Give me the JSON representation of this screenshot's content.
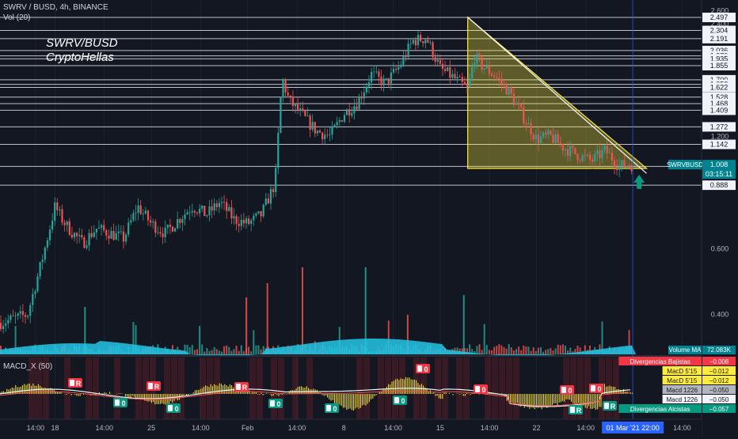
{
  "header": {
    "symbol_line": "SWRV / BUSD, 4h, BINANCE",
    "vol_line": "Vol (20)",
    "watermark_line1": "SWRV/BUSD",
    "watermark_line2": "CryptoHellas"
  },
  "macd_pane": {
    "title": "MACD_X (50)",
    "tags": [
      {
        "text": "R",
        "kind": "bear"
      },
      {
        "text": "R",
        "kind": "bear"
      },
      {
        "text": "R",
        "kind": "bear"
      },
      {
        "text": "0",
        "kind": "bear"
      },
      {
        "text": "0",
        "kind": "bear"
      },
      {
        "text": "0",
        "kind": "bear"
      },
      {
        "text": "0",
        "kind": "bear"
      },
      {
        "text": "0",
        "kind": "bull"
      },
      {
        "text": "0",
        "kind": "bull"
      },
      {
        "text": "0",
        "kind": "bull"
      },
      {
        "text": "0",
        "kind": "bull"
      },
      {
        "text": "0",
        "kind": "bull"
      },
      {
        "text": "R",
        "kind": "bull"
      },
      {
        "text": "R",
        "kind": "bull"
      }
    ],
    "labels": [
      {
        "text": "Divergencias Bajistas",
        "value": "−0.008",
        "color": "#f23645",
        "fg": "#ffffff"
      },
      {
        "text": "MacD 5'15",
        "value": "−0.012",
        "color": "#ffeb3b",
        "fg": "#131722"
      },
      {
        "text": "MacD 5'15",
        "value": "−0.012",
        "color": "#ffeb3b",
        "fg": "#131722"
      },
      {
        "text": "Macd 1226",
        "value": "−0.050",
        "color": "#b2b5be",
        "fg": "#131722"
      },
      {
        "text": "Macd 1226",
        "value": "−0.050",
        "color": "#f0f3fa",
        "fg": "#131722"
      },
      {
        "text": "Divergencias Alcistas",
        "value": "−0.057",
        "color": "#089981",
        "fg": "#ffffff"
      }
    ]
  },
  "price_labels": {
    "symbol_tag": "SWRVBUSD",
    "last_price": "1.008",
    "countdown": "03:15:11",
    "volume_ma_label": "Volume MA",
    "volume_ma_value": "72.083K",
    "hline_levels": [
      "2.497",
      "2.304",
      "2.191",
      "2.036",
      "1.970",
      "1.935",
      "1.855",
      "1.700",
      "1.653",
      "1.622",
      "1.528",
      "1.468",
      "1.409",
      "1.272",
      "1.142",
      "0.997",
      "0.888"
    ],
    "axis_plain": [
      "2.600",
      "2.400",
      "1.200",
      "0.600",
      "0.400"
    ]
  },
  "time_axis": {
    "ticks": [
      "14:00",
      "18",
      "14:00",
      "25",
      "14:00",
      "Feb",
      "14:00",
      "8",
      "14:00",
      "15",
      "14:00",
      "22",
      "14:00",
      "14:00",
      "8"
    ],
    "current": "01 Mar '21   22:00"
  },
  "chart_data": {
    "type": "candlestick",
    "title": "SWRV / BUSD, 4h, BINANCE",
    "scale": "log",
    "ylim": [
      0.31,
      2.78
    ],
    "last_price": 1.008,
    "x_range": [
      "2021-01-14",
      "2021-03-06"
    ],
    "series": [
      {
        "name": "SWRVBUSD",
        "points": [
          [
            "2021-01-14",
            0.38
          ],
          [
            "2021-01-15",
            0.39
          ],
          [
            "2021-01-16",
            0.4
          ],
          [
            "2021-01-16 12:00",
            0.47
          ],
          [
            "2021-01-17",
            0.55
          ],
          [
            "2021-01-18",
            0.78
          ],
          [
            "2021-01-18 12:00",
            0.72
          ],
          [
            "2021-01-19",
            0.68
          ],
          [
            "2021-01-20",
            0.62
          ],
          [
            "2021-01-21",
            0.68
          ],
          [
            "2021-01-22",
            0.66
          ],
          [
            "2021-01-23",
            0.64
          ],
          [
            "2021-01-24",
            0.78
          ],
          [
            "2021-01-25",
            0.7
          ],
          [
            "2021-01-26",
            0.66
          ],
          [
            "2021-01-27",
            0.72
          ],
          [
            "2021-01-28",
            0.78
          ],
          [
            "2021-01-29",
            0.74
          ],
          [
            "2021-01-30",
            0.8
          ],
          [
            "2021-01-31",
            0.72
          ],
          [
            "2021-02-01",
            0.7
          ],
          [
            "2021-02-02",
            0.74
          ],
          [
            "2021-02-03",
            0.9
          ],
          [
            "2021-02-03 12:00",
            1.72
          ],
          [
            "2021-02-04",
            1.5
          ],
          [
            "2021-02-05",
            1.36
          ],
          [
            "2021-02-06",
            1.24
          ],
          [
            "2021-02-07",
            1.2
          ],
          [
            "2021-02-08",
            1.38
          ],
          [
            "2021-02-09",
            1.48
          ],
          [
            "2021-02-10",
            1.76
          ],
          [
            "2021-02-11",
            1.66
          ],
          [
            "2021-02-12",
            1.84
          ],
          [
            "2021-02-13",
            2.16
          ],
          [
            "2021-02-14",
            2.2
          ],
          [
            "2021-02-15",
            1.82
          ],
          [
            "2021-02-16",
            1.72
          ],
          [
            "2021-02-17",
            1.6
          ],
          [
            "2021-02-17 12:00",
            1.96
          ],
          [
            "2021-02-18",
            1.86
          ],
          [
            "2021-02-19",
            1.74
          ],
          [
            "2021-02-20",
            1.58
          ],
          [
            "2021-02-21",
            1.36
          ],
          [
            "2021-02-22",
            1.18
          ],
          [
            "2021-02-23",
            1.2
          ],
          [
            "2021-02-24",
            1.12
          ],
          [
            "2021-02-25",
            1.07
          ],
          [
            "2021-02-26",
            1.03
          ],
          [
            "2021-02-27",
            1.1
          ],
          [
            "2021-02-28",
            1.0
          ],
          [
            "2021-03-01",
            1.008
          ]
        ]
      }
    ],
    "annotations": {
      "hlines": [
        2.497,
        2.304,
        2.191,
        2.036,
        1.97,
        1.935,
        1.855,
        1.7,
        1.653,
        1.622,
        1.528,
        1.468,
        1.409,
        1.272,
        1.142,
        0.997,
        0.888
      ],
      "triangle": {
        "apex": [
          "2021-02-17",
          2.5
        ],
        "base_left": [
          "2021-02-17",
          0.985
        ],
        "base_right": [
          "2021-03-02",
          0.985
        ],
        "fill": "#ffeb3b"
      },
      "trendline": {
        "from": [
          "2021-02-17",
          2.5
        ],
        "to": [
          "2021-03-02",
          0.955
        ]
      },
      "arrow": {
        "at": [
          "2021-03-01",
          0.92
        ],
        "direction": "up",
        "color": "#089981"
      }
    }
  }
}
